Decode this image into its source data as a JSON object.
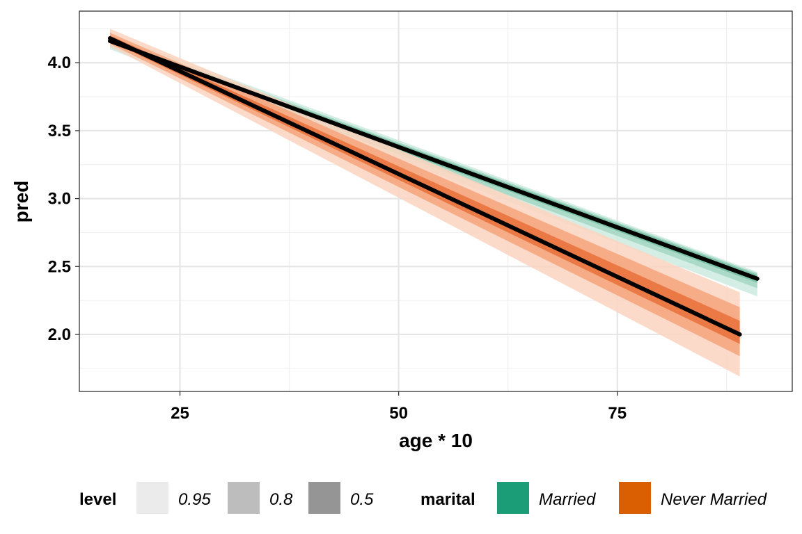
{
  "chart_data": {
    "type": "line",
    "title": "",
    "xlabel": "age * 10",
    "ylabel": "pred",
    "xlim": [
      13.5,
      95
    ],
    "ylim": [
      1.58,
      4.38
    ],
    "x_ticks": [
      25,
      50,
      75
    ],
    "x_tick_labels": [
      "25",
      "50",
      "75"
    ],
    "y_ticks": [
      2.0,
      2.5,
      3.0,
      3.5,
      4.0
    ],
    "y_tick_labels": [
      "2.0",
      "2.5",
      "3.0",
      "3.5",
      "4.0"
    ],
    "grid": true,
    "legend_position": "bottom",
    "legend": {
      "level": {
        "title": "level",
        "entries": [
          {
            "label": "0.95",
            "color": "#ebebeb"
          },
          {
            "label": "0.8",
            "color": "#bdbdbd"
          },
          {
            "label": "0.5",
            "color": "#959595"
          }
        ]
      },
      "marital": {
        "title": "marital",
        "entries": [
          {
            "label": "Married",
            "color": "#1b9e77"
          },
          {
            "label": "Never Married",
            "color": "#d95f02"
          }
        ]
      }
    },
    "series": [
      {
        "name": "Married",
        "color": "#1b9e77",
        "x": [
          17,
          91
        ],
        "pred": [
          4.16,
          2.41
        ],
        "bands": [
          {
            "level": 0.95,
            "lower": [
              4.1,
              2.28
            ],
            "upper": [
              4.21,
              2.46
            ],
            "color": "#cdebe0"
          },
          {
            "level": 0.8,
            "lower": [
              4.12,
              2.34
            ],
            "upper": [
              4.19,
              2.45
            ],
            "color": "#a4d6c3"
          },
          {
            "level": 0.5,
            "lower": [
              4.14,
              2.38
            ],
            "upper": [
              4.18,
              2.44
            ],
            "color": "#77bfa3"
          }
        ]
      },
      {
        "name": "Never Married",
        "color": "#d95f02",
        "x": [
          17,
          89
        ],
        "pred": [
          4.18,
          2.0
        ],
        "bands": [
          {
            "level": 0.95,
            "lower": [
              4.12,
              1.69
            ],
            "upper": [
              4.25,
              2.31
            ],
            "color": "#fcd4bf"
          },
          {
            "level": 0.8,
            "lower": [
              4.14,
              1.84
            ],
            "upper": [
              4.22,
              2.2
            ],
            "color": "#f4a57b"
          },
          {
            "level": 0.5,
            "lower": [
              4.16,
              1.93
            ],
            "upper": [
              4.2,
              2.1
            ],
            "color": "#e8703a"
          }
        ]
      }
    ]
  }
}
